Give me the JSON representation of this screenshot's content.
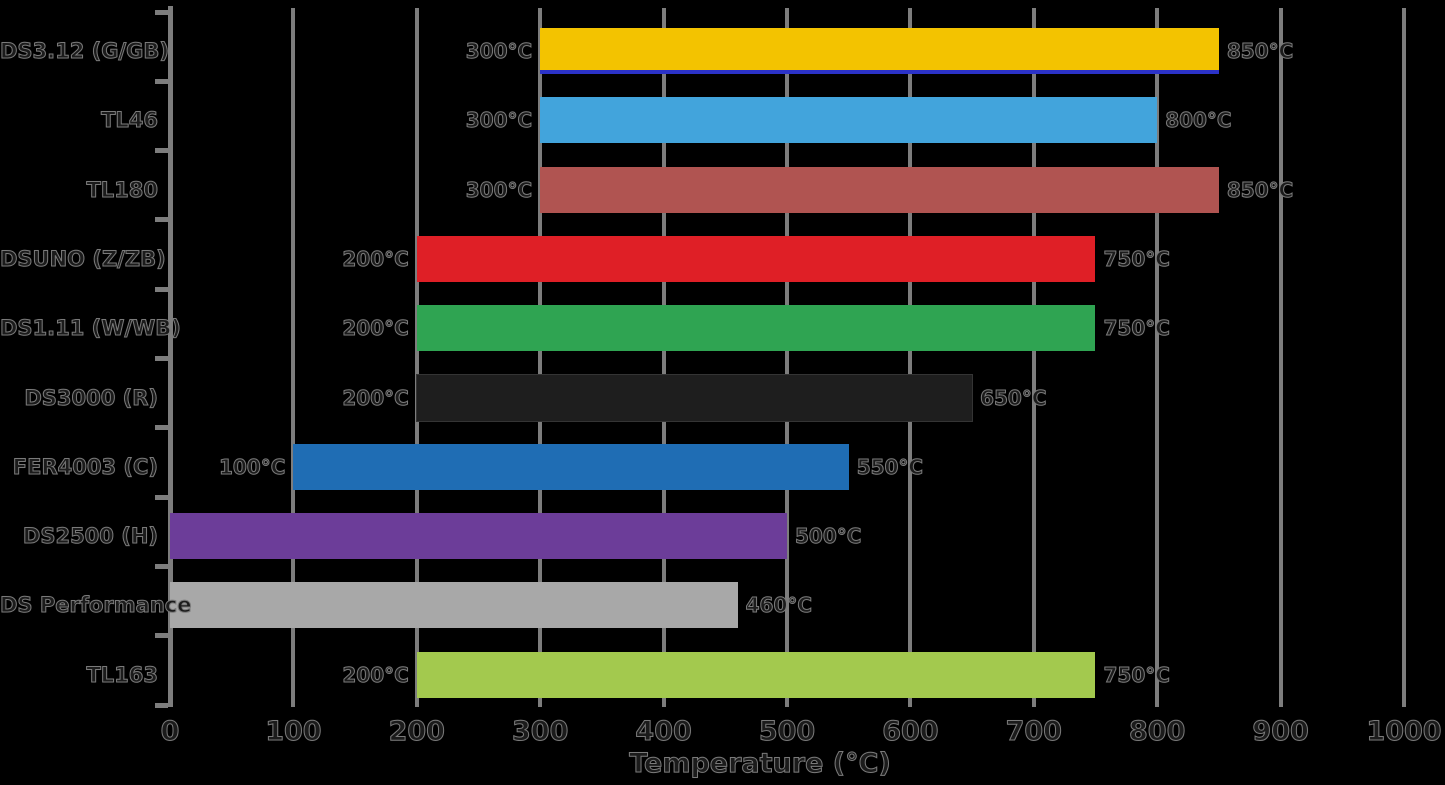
{
  "chart_data": {
    "type": "bar",
    "orientation": "horizontal",
    "title": "",
    "xlabel": "Temperature (°C)",
    "xlim": [
      0,
      1000
    ],
    "xticks": [
      0,
      100,
      200,
      300,
      400,
      500,
      600,
      700,
      800,
      900,
      1000
    ],
    "grid": true,
    "legend": false,
    "background_color": "#000000",
    "gridline_color": "#7d7d7d",
    "rows": [
      {
        "category": "DS3.12 (G/GB)",
        "range": [
          300,
          850
        ],
        "min_label": "300°C",
        "max_label": "850°C",
        "color": "#F3C300",
        "underline_color": "#2B32C8"
      },
      {
        "category": "TL46",
        "range": [
          300,
          800
        ],
        "min_label": "300°C",
        "max_label": "800°C",
        "color": "#42A4DC",
        "underline_color": ""
      },
      {
        "category": "TL180",
        "range": [
          300,
          850
        ],
        "min_label": "300°C",
        "max_label": "850°C",
        "color": "#B05451",
        "underline_color": ""
      },
      {
        "category": "DSUNO (Z/ZB)",
        "range": [
          200,
          750
        ],
        "min_label": "200°C",
        "max_label": "750°C",
        "color": "#DF1F26",
        "underline_color": ""
      },
      {
        "category": "DS1.11 (W/WB)",
        "range": [
          200,
          750
        ],
        "min_label": "200°C",
        "max_label": "750°C",
        "color": "#2FA452",
        "underline_color": ""
      },
      {
        "category": "DS3000 (R)",
        "range": [
          200,
          650
        ],
        "min_label": "200°C",
        "max_label": "650°C",
        "color": "#1E1E1E",
        "underline_color": ""
      },
      {
        "category": "FER4003 (C)",
        "range": [
          100,
          550
        ],
        "min_label": "100°C",
        "max_label": "550°C",
        "color": "#1F6DB4",
        "underline_color": ""
      },
      {
        "category": "DS2500 (H)",
        "range": [
          0,
          500
        ],
        "min_label": "",
        "max_label": "500°C",
        "color": "#6C3D99",
        "underline_color": ""
      },
      {
        "category": "DS Performance",
        "range": [
          0,
          460
        ],
        "min_label": "",
        "max_label": "460°C",
        "color": "#A8A8A8",
        "underline_color": ""
      },
      {
        "category": "TL163",
        "range": [
          200,
          750
        ],
        "min_label": "200°C",
        "max_label": "750°C",
        "color": "#A3C94E",
        "underline_color": ""
      }
    ]
  }
}
